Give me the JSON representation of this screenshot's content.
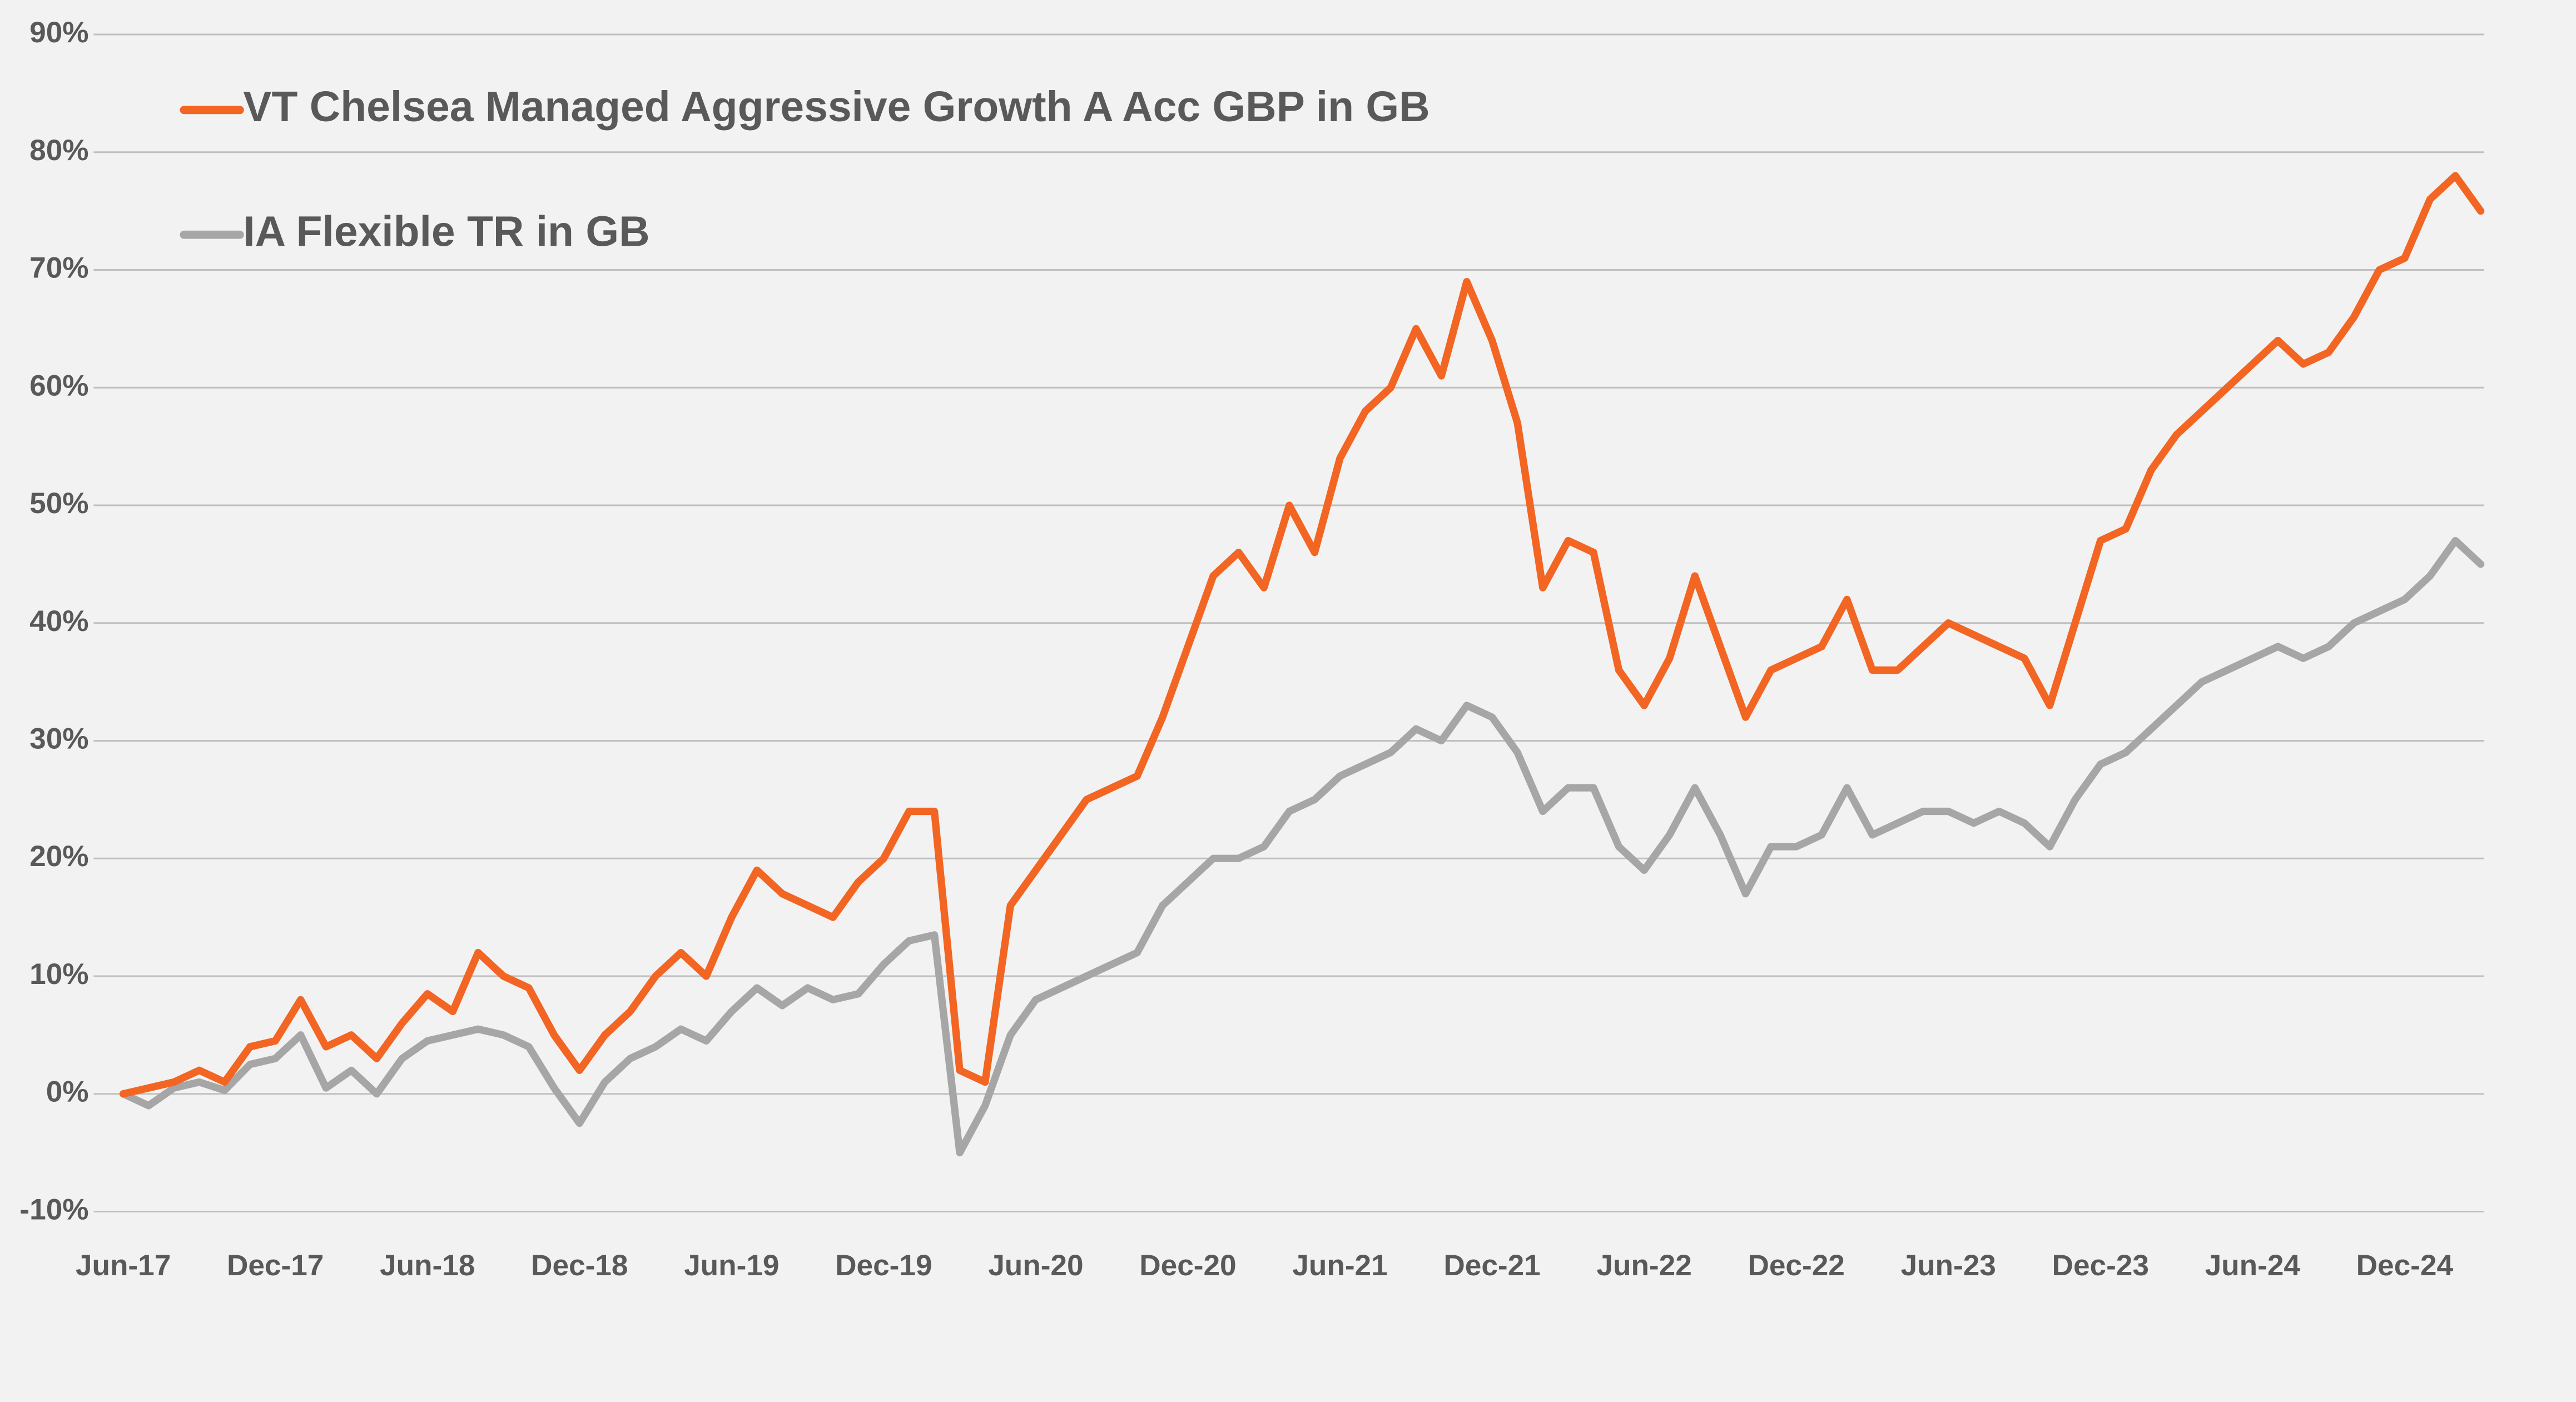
{
  "chart_data": {
    "type": "line",
    "x": [
      "2017-06",
      "2017-07",
      "2017-08",
      "2017-09",
      "2017-10",
      "2017-11",
      "2017-12",
      "2018-01",
      "2018-02",
      "2018-03",
      "2018-04",
      "2018-05",
      "2018-06",
      "2018-07",
      "2018-08",
      "2018-09",
      "2018-10",
      "2018-11",
      "2018-12",
      "2019-01",
      "2019-02",
      "2019-03",
      "2019-04",
      "2019-05",
      "2019-06",
      "2019-07",
      "2019-08",
      "2019-09",
      "2019-10",
      "2019-11",
      "2019-12",
      "2020-01",
      "2020-02",
      "2020-03",
      "2020-04",
      "2020-05",
      "2020-06",
      "2020-07",
      "2020-08",
      "2020-09",
      "2020-10",
      "2020-11",
      "2020-12",
      "2021-01",
      "2021-02",
      "2021-03",
      "2021-04",
      "2021-05",
      "2021-06",
      "2021-07",
      "2021-08",
      "2021-09",
      "2021-10",
      "2021-11",
      "2021-12",
      "2022-01",
      "2022-02",
      "2022-03",
      "2022-04",
      "2022-05",
      "2022-06",
      "2022-07",
      "2022-08",
      "2022-09",
      "2022-10",
      "2022-11",
      "2022-12",
      "2023-01",
      "2023-02",
      "2023-03",
      "2023-04",
      "2023-05",
      "2023-06",
      "2023-07",
      "2023-08",
      "2023-09",
      "2023-10",
      "2023-11",
      "2023-12",
      "2024-01",
      "2024-02",
      "2024-03",
      "2024-04",
      "2024-05",
      "2024-06",
      "2024-07",
      "2024-08",
      "2024-09",
      "2024-10",
      "2024-11",
      "2024-12",
      "2025-01",
      "2025-02",
      "2025-03"
    ],
    "series": [
      {
        "name": "VT Chelsea Managed Aggressive Growth A Acc GBP in GB",
        "color": "#f26522",
        "values": [
          0,
          0.5,
          1,
          2,
          1,
          4,
          4.5,
          8,
          4,
          5,
          3,
          6,
          8.5,
          7,
          12,
          10,
          9,
          5,
          2,
          5,
          7,
          10,
          12,
          10,
          15,
          19,
          17,
          16,
          15,
          18,
          20,
          24,
          24,
          2,
          1,
          16,
          19,
          22,
          25,
          26,
          27,
          32,
          38,
          44,
          46,
          43,
          50,
          46,
          54,
          58,
          60,
          65,
          61,
          69,
          64,
          57,
          43,
          47,
          46,
          36,
          33,
          37,
          44,
          38,
          32,
          36,
          37,
          38,
          42,
          36,
          36,
          38,
          40,
          39,
          38,
          37,
          33,
          40,
          47,
          48,
          53,
          56,
          58,
          60,
          62,
          64,
          62,
          63,
          66,
          70,
          71,
          76,
          78,
          75
        ]
      },
      {
        "name": "IA Flexible TR in GB",
        "color": "#a6a6a6",
        "values": [
          0,
          -1,
          0.5,
          1,
          0.3,
          2.5,
          3,
          5,
          0.5,
          2,
          0,
          3,
          4.5,
          5,
          5.5,
          5,
          4,
          0.5,
          -2.5,
          1,
          3,
          4,
          5.5,
          4.5,
          7,
          9,
          7.5,
          9,
          8,
          8.5,
          11,
          13,
          13.5,
          -5,
          -1,
          5,
          8,
          9,
          10,
          11,
          12,
          16,
          18,
          20,
          20,
          21,
          24,
          25,
          27,
          28,
          29,
          31,
          30,
          33,
          32,
          29,
          24,
          26,
          26,
          21,
          19,
          22,
          26,
          22,
          17,
          21,
          21,
          22,
          26,
          22,
          23,
          24,
          24,
          23,
          24,
          23,
          21,
          25,
          28,
          29,
          31,
          33,
          35,
          36,
          37,
          38,
          37,
          38,
          40,
          41,
          42,
          44,
          47,
          45
        ]
      }
    ],
    "xlim": [
      "2017-06",
      "2025-03"
    ],
    "xticks": [
      {
        "value": "2017-06",
        "label": "Jun-17"
      },
      {
        "value": "2017-12",
        "label": "Dec-17"
      },
      {
        "value": "2018-06",
        "label": "Jun-18"
      },
      {
        "value": "2018-12",
        "label": "Dec-18"
      },
      {
        "value": "2019-06",
        "label": "Jun-19"
      },
      {
        "value": "2019-12",
        "label": "Dec-19"
      },
      {
        "value": "2020-06",
        "label": "Jun-20"
      },
      {
        "value": "2020-12",
        "label": "Dec-20"
      },
      {
        "value": "2021-06",
        "label": "Jun-21"
      },
      {
        "value": "2021-12",
        "label": "Dec-21"
      },
      {
        "value": "2022-06",
        "label": "Jun-22"
      },
      {
        "value": "2022-12",
        "label": "Dec-22"
      },
      {
        "value": "2023-06",
        "label": "Jun-23"
      },
      {
        "value": "2023-12",
        "label": "Dec-23"
      },
      {
        "value": "2024-06",
        "label": "Jun-24"
      },
      {
        "value": "2024-12",
        "label": "Dec-24"
      }
    ],
    "ylim": [
      -10,
      90
    ],
    "yticks": [
      {
        "value": -10,
        "label": "-10%"
      },
      {
        "value": 0,
        "label": "0%"
      },
      {
        "value": 10,
        "label": "10%"
      },
      {
        "value": 20,
        "label": "20%"
      },
      {
        "value": 30,
        "label": "30%"
      },
      {
        "value": 40,
        "label": "40%"
      },
      {
        "value": 50,
        "label": "50%"
      },
      {
        "value": 60,
        "label": "60%"
      },
      {
        "value": 70,
        "label": "70%"
      },
      {
        "value": 80,
        "label": "80%"
      },
      {
        "value": 90,
        "label": "90%"
      }
    ],
    "grid": true,
    "legend": "top-left"
  }
}
